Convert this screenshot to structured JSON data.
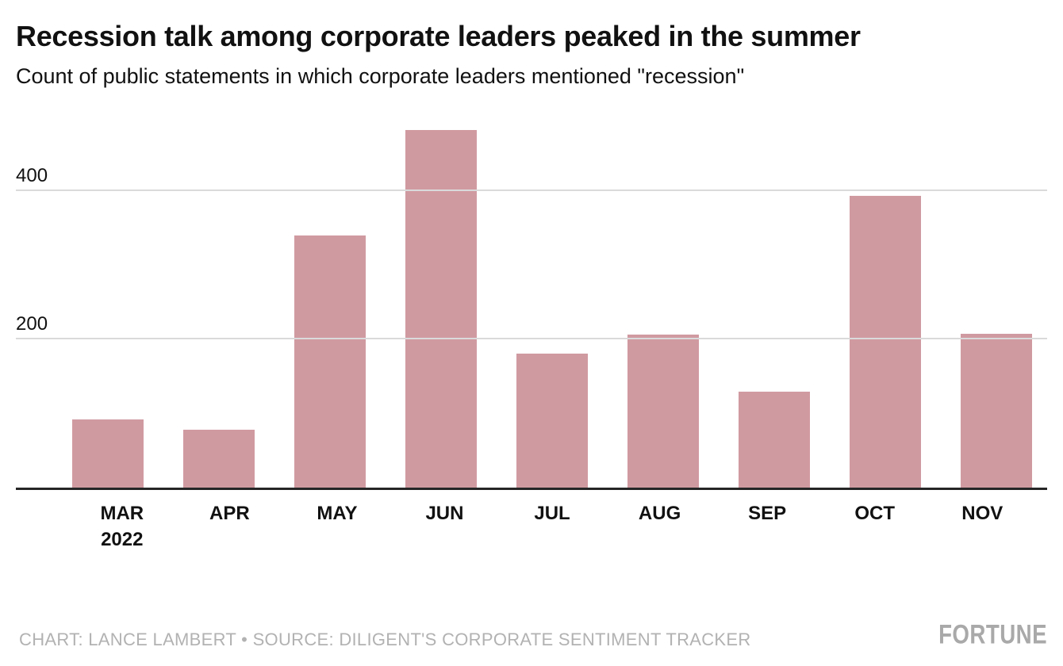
{
  "header": {
    "title": "Recession talk among corporate leaders peaked in the summer",
    "subtitle": "Count of public statements in which corporate leaders mentioned \"recession\""
  },
  "chart_data": {
    "type": "bar",
    "title": "Recession talk among corporate leaders peaked in the summer",
    "subtitle": "Count of public statements in which corporate leaders mentioned \"recession\"",
    "categories": [
      "MAR",
      "APR",
      "MAY",
      "JUN",
      "JUL",
      "AUG",
      "SEP",
      "OCT",
      "NOV"
    ],
    "category_sublabels": [
      "2022",
      "",
      "",
      "",
      "",
      "",
      "",
      "",
      ""
    ],
    "values": [
      92,
      79,
      341,
      483,
      181,
      207,
      130,
      394,
      208
    ],
    "xlabel": "",
    "ylabel": "",
    "ylim": [
      0,
      522
    ],
    "y_ticks": [
      200,
      400
    ],
    "grid": "horizontal gridlines at y ticks, no zero label",
    "legend": "none",
    "bar_color": "#d09aa1",
    "gridline_color": "#dadada",
    "axis_color": "#262626"
  },
  "footer": {
    "note": "CHART: LANCE LAMBERT • SOURCE: DILIGENT'S CORPORATE SENTIMENT TRACKER",
    "brand": "FORTUNE"
  }
}
